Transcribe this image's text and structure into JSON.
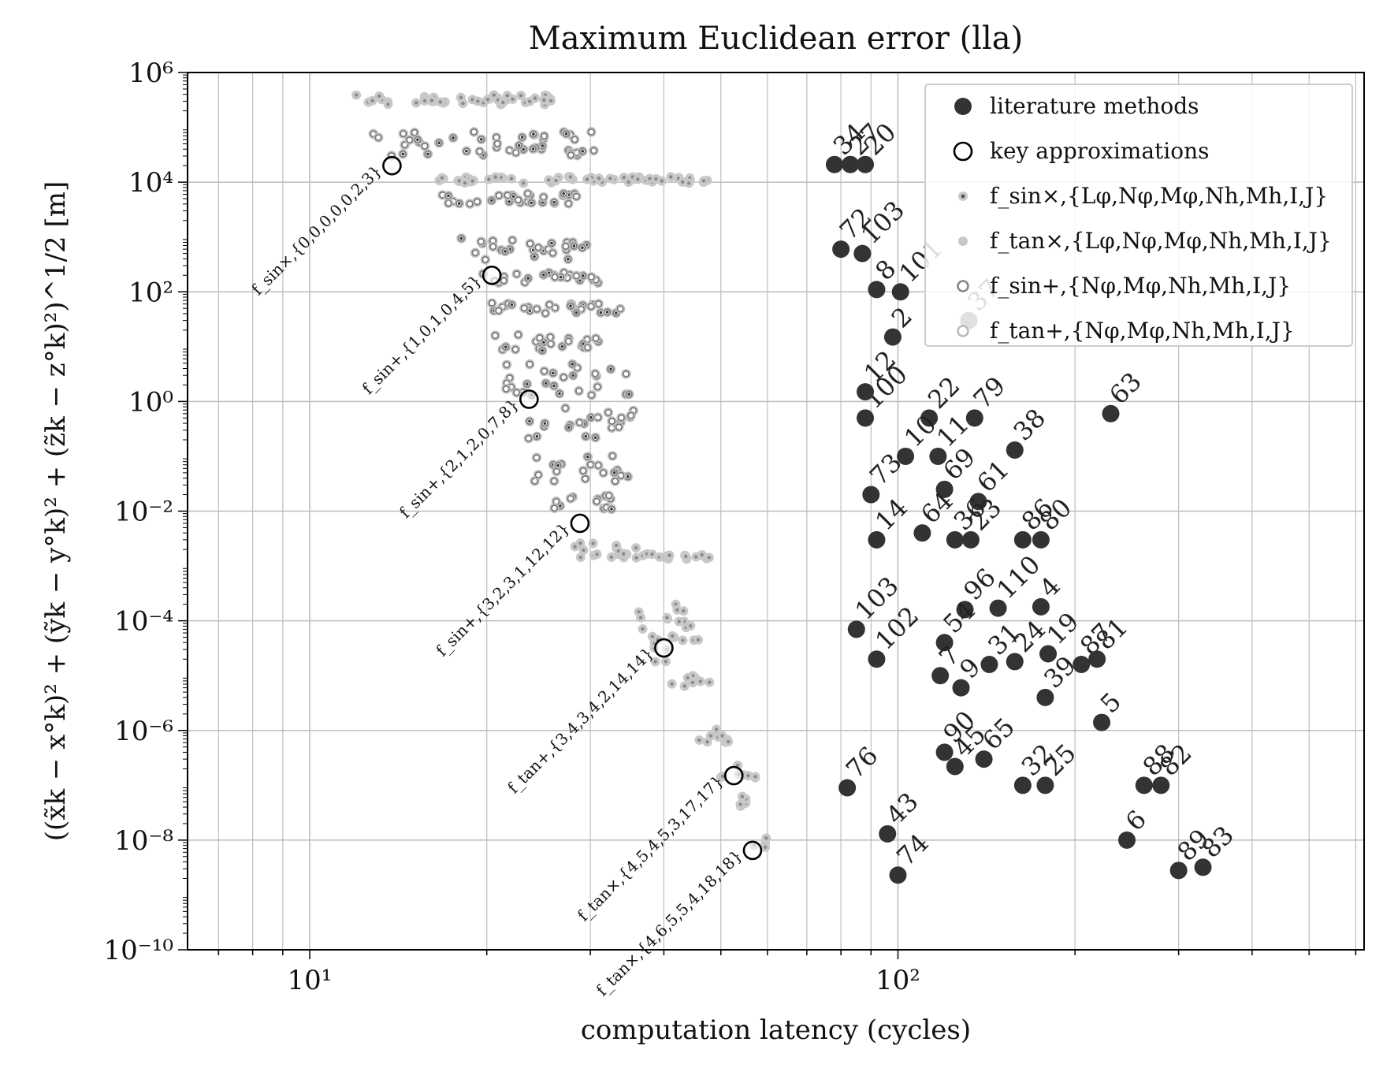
{
  "chart_data": {
    "type": "scatter",
    "title": "Maximum Euclidean error (lla)",
    "xlabel": "computation latency (cycles)",
    "ylabel": "((x̃k − x°k)² + (ỹk − y°k)² + (z̃k − z°k)²)^1/2 [m]",
    "xscale": "log",
    "yscale": "log",
    "xlim": [
      6.2,
      620
    ],
    "ylim": [
      1e-10,
      1000000.0
    ],
    "x_ticks": [
      {
        "value": 10,
        "label": "10¹"
      },
      {
        "value": 100,
        "label": "10²"
      }
    ],
    "y_ticks": [
      {
        "value": 1000000.0,
        "label": "10⁶"
      },
      {
        "value": 10000.0,
        "label": "10⁴"
      },
      {
        "value": 100.0,
        "label": "10²"
      },
      {
        "value": 1.0,
        "label": "10⁰"
      },
      {
        "value": 0.01,
        "label": "10⁻²"
      },
      {
        "value": 0.0001,
        "label": "10⁻⁴"
      },
      {
        "value": 1e-06,
        "label": "10⁻⁶"
      },
      {
        "value": 1e-08,
        "label": "10⁻⁸"
      },
      {
        "value": 1e-10,
        "label": "10⁻¹⁰"
      }
    ],
    "grid": true,
    "legend_position": "top-right",
    "colors": {
      "literature": "#333333",
      "key_edge": "#000000",
      "sin_mult": "#5a5a5a",
      "tan_mult": "#c8c8c8",
      "sin_add": "#888888",
      "tan_add": "#bbbbbb"
    },
    "legend": [
      {
        "label": "literature methods",
        "marker": "filled-dark"
      },
      {
        "label": "key approximations",
        "marker": "open-circle"
      },
      {
        "label": "f_sin×,{Lφ,Nφ,Mφ,Nh,Mh,I,J}",
        "marker": "small-dark-dot"
      },
      {
        "label": "f_tan×,{Lφ,Nφ,Mφ,Nh,Mh,I,J}",
        "marker": "small-light-dot"
      },
      {
        "label": "f_sin+,{Nφ,Mφ,Nh,Mh,I,J}",
        "marker": "ring-dark"
      },
      {
        "label": "f_tan+,{Nφ,Mφ,Nh,Mh,I,J}",
        "marker": "ring-light"
      }
    ],
    "key_approximations": [
      {
        "x": 13.8,
        "y": 20000,
        "label": "f_sin×,{0,0,0,0,0,2,3}"
      },
      {
        "x": 20.4,
        "y": 200,
        "label": "f_sin+,{1,0,1,0,4,5}"
      },
      {
        "x": 23.6,
        "y": 1.1,
        "label": "f_sin+,{2,1,2,0,7,8}"
      },
      {
        "x": 28.8,
        "y": 0.006,
        "label": "f_sin+,{3,2,3,1,12,12}"
      },
      {
        "x": 40.0,
        "y": 3.2e-05,
        "label": "f_tan+,{3,4,3,4,2,14,14}"
      },
      {
        "x": 52.6,
        "y": 1.5e-07,
        "label": "f_tan×,{4,5,4,5,3,17,17}"
      },
      {
        "x": 56.6,
        "y": 6.5e-09,
        "label": "f_tan×,{4,6,5,5,4,18,18}"
      }
    ],
    "literature_methods": [
      {
        "label": "34",
        "x": 78,
        "y": 21000
      },
      {
        "label": "27",
        "x": 83,
        "y": 21000
      },
      {
        "label": "20",
        "x": 88,
        "y": 21000
      },
      {
        "label": "72",
        "x": 80,
        "y": 600
      },
      {
        "label": "103",
        "x": 87,
        "y": 500
      },
      {
        "label": "8",
        "x": 92,
        "y": 110
      },
      {
        "label": "101",
        "x": 101,
        "y": 100
      },
      {
        "label": "2",
        "x": 98,
        "y": 15
      },
      {
        "label": "37",
        "x": 132,
        "y": 30
      },
      {
        "label": "63",
        "x": 230,
        "y": 0.6
      },
      {
        "label": "100",
        "x": 88,
        "y": 0.5
      },
      {
        "label": "12",
        "x": 88,
        "y": 1.5
      },
      {
        "label": "22",
        "x": 113,
        "y": 0.5
      },
      {
        "label": "79",
        "x": 135,
        "y": 0.5
      },
      {
        "label": "38",
        "x": 158,
        "y": 0.13
      },
      {
        "label": "11",
        "x": 117,
        "y": 0.1
      },
      {
        "label": "10",
        "x": 103,
        "y": 0.1
      },
      {
        "label": "73",
        "x": 90,
        "y": 0.02
      },
      {
        "label": "69",
        "x": 120,
        "y": 0.025
      },
      {
        "label": "61",
        "x": 137,
        "y": 0.015
      },
      {
        "label": "14",
        "x": 92,
        "y": 0.003
      },
      {
        "label": "64",
        "x": 110,
        "y": 0.004
      },
      {
        "label": "36",
        "x": 125,
        "y": 0.003
      },
      {
        "label": "23",
        "x": 133,
        "y": 0.003
      },
      {
        "label": "86",
        "x": 163,
        "y": 0.003
      },
      {
        "label": "80",
        "x": 175,
        "y": 0.003
      },
      {
        "label": "103",
        "x": 85,
        "y": 7e-05
      },
      {
        "label": "102",
        "x": 92,
        "y": 2e-05
      },
      {
        "label": "96",
        "x": 130,
        "y": 0.00016
      },
      {
        "label": "110",
        "x": 148,
        "y": 0.00017
      },
      {
        "label": "4",
        "x": 175,
        "y": 0.00018
      },
      {
        "label": "54",
        "x": 120,
        "y": 4e-05
      },
      {
        "label": "7",
        "x": 118,
        "y": 1e-05
      },
      {
        "label": "9",
        "x": 128,
        "y": 6e-06
      },
      {
        "label": "31",
        "x": 143,
        "y": 1.6e-05
      },
      {
        "label": "24",
        "x": 158,
        "y": 1.8e-05
      },
      {
        "label": "19",
        "x": 180,
        "y": 2.5e-05
      },
      {
        "label": "87",
        "x": 205,
        "y": 1.6e-05
      },
      {
        "label": "81",
        "x": 218,
        "y": 2e-05
      },
      {
        "label": "39",
        "x": 178,
        "y": 4e-06
      },
      {
        "label": "5",
        "x": 222,
        "y": 1.4e-06
      },
      {
        "label": "90",
        "x": 120,
        "y": 4e-07
      },
      {
        "label": "45",
        "x": 125,
        "y": 2.2e-07
      },
      {
        "label": "65",
        "x": 140,
        "y": 3e-07
      },
      {
        "label": "32",
        "x": 163,
        "y": 1e-07
      },
      {
        "label": "25",
        "x": 178,
        "y": 1e-07
      },
      {
        "label": "88",
        "x": 262,
        "y": 1e-07
      },
      {
        "label": "82",
        "x": 280,
        "y": 1e-07
      },
      {
        "label": "76",
        "x": 82,
        "y": 9e-08
      },
      {
        "label": "43",
        "x": 96,
        "y": 1.3e-08
      },
      {
        "label": "74",
        "x": 100,
        "y": 2.3e-09
      },
      {
        "label": "6",
        "x": 245,
        "y": 1e-08
      },
      {
        "label": "89",
        "x": 300,
        "y": 2.8e-09
      },
      {
        "label": "83",
        "x": 330,
        "y": 3.2e-09
      }
    ]
  }
}
